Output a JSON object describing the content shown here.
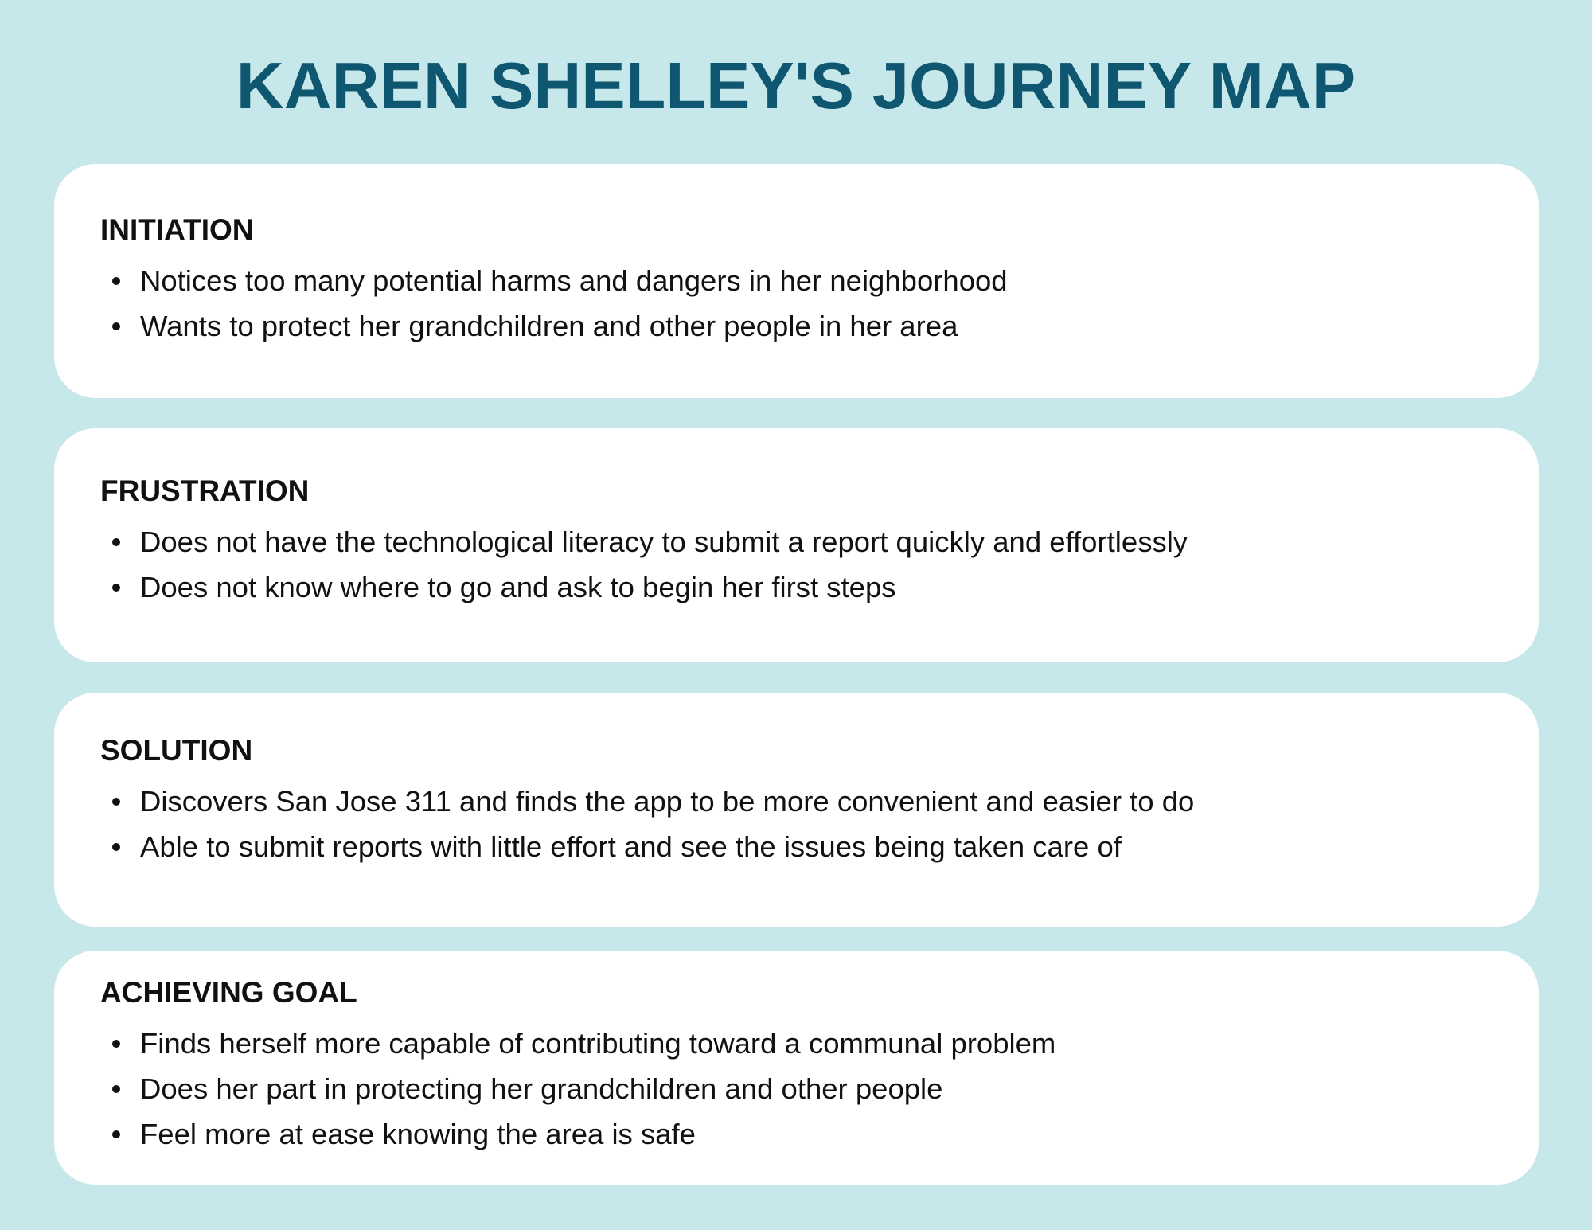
{
  "title": "KAREN SHELLEY'S JOURNEY MAP",
  "colors": {
    "background": "#c7e8ea",
    "title": "#0f5770",
    "card": "#ffffff",
    "text": "#111111"
  },
  "sections": [
    {
      "heading": "INITIATION",
      "items": [
        "Notices too many potential harms and dangers in her neighborhood",
        "Wants to protect her grandchildren and other people in her area"
      ]
    },
    {
      "heading": "FRUSTRATION",
      "items": [
        "Does not have the technological literacy to submit a report quickly and effortlessly",
        "Does not know where to go and ask to begin her first steps"
      ]
    },
    {
      "heading": "SOLUTION",
      "items": [
        "Discovers San Jose 311 and finds the app to be more convenient and easier to do",
        "Able to submit reports with little effort and see the issues being taken care of"
      ]
    },
    {
      "heading": "ACHIEVING GOAL",
      "items": [
        "Finds herself more capable of contributing toward a communal problem",
        "Does her part in protecting her grandchildren and other people",
        "Feel more at ease knowing the area is safe"
      ]
    }
  ]
}
